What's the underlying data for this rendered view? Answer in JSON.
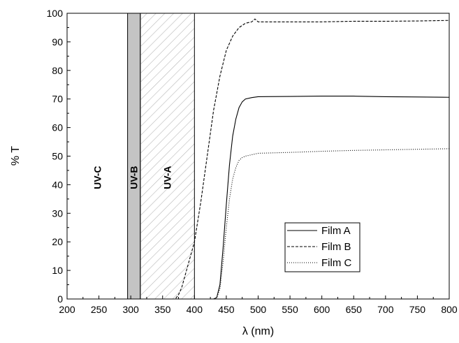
{
  "chart_data": {
    "type": "line",
    "xlabel": "λ (nm)",
    "ylabel": "% T",
    "xlim": [
      200,
      800
    ],
    "ylim": [
      0,
      100
    ],
    "x_ticks": [
      200,
      250,
      300,
      350,
      400,
      450,
      500,
      550,
      600,
      650,
      700,
      750,
      800
    ],
    "y_ticks": [
      0,
      10,
      20,
      30,
      40,
      50,
      60,
      70,
      80,
      90,
      100
    ],
    "grid": false,
    "legend_position": "lower-right",
    "regions": [
      {
        "label": "UV-C",
        "x_range": [
          200,
          295
        ],
        "style": "blank"
      },
      {
        "label": "UV-B",
        "x_range": [
          295,
          315
        ],
        "style": "gray-fill"
      },
      {
        "label": "UV-A",
        "x_range": [
          315,
          400
        ],
        "style": "hatched"
      }
    ],
    "series": [
      {
        "name": "Film A",
        "line_style": "solid",
        "color": "#000000",
        "x": [
          200,
          300,
          400,
          430,
          435,
          440,
          445,
          450,
          455,
          460,
          465,
          470,
          475,
          480,
          490,
          500,
          550,
          600,
          650,
          700,
          750,
          800
        ],
        "y": [
          0,
          0,
          0,
          0,
          0.5,
          5,
          18,
          33,
          47,
          57,
          63,
          67,
          69,
          70,
          70.5,
          70.8,
          70.9,
          71,
          71,
          70.8,
          70.7,
          70.6
        ]
      },
      {
        "name": "Film B",
        "line_style": "dashed",
        "color": "#000000",
        "x": [
          200,
          300,
          360,
          370,
          375,
          380,
          390,
          400,
          410,
          420,
          430,
          440,
          450,
          460,
          470,
          480,
          490,
          495,
          500,
          550,
          600,
          650,
          700,
          750,
          800
        ],
        "y": [
          0,
          0,
          0,
          0,
          1.5,
          4,
          12,
          20,
          34,
          50,
          66,
          78,
          87,
          92,
          95,
          96.5,
          97,
          98,
          97,
          97,
          97,
          97.2,
          97.2,
          97.3,
          97.5
        ]
      },
      {
        "name": "Film C",
        "line_style": "dotted",
        "color": "#000000",
        "x": [
          200,
          300,
          400,
          430,
          435,
          440,
          445,
          450,
          455,
          460,
          465,
          470,
          475,
          480,
          490,
          500,
          550,
          600,
          650,
          700,
          750,
          800
        ],
        "y": [
          0,
          0,
          0,
          0,
          0.5,
          3.5,
          13,
          25,
          35,
          42,
          46,
          48.5,
          49.5,
          50,
          50.5,
          51,
          51.3,
          51.7,
          52,
          52.2,
          52.4,
          52.6
        ]
      }
    ]
  }
}
